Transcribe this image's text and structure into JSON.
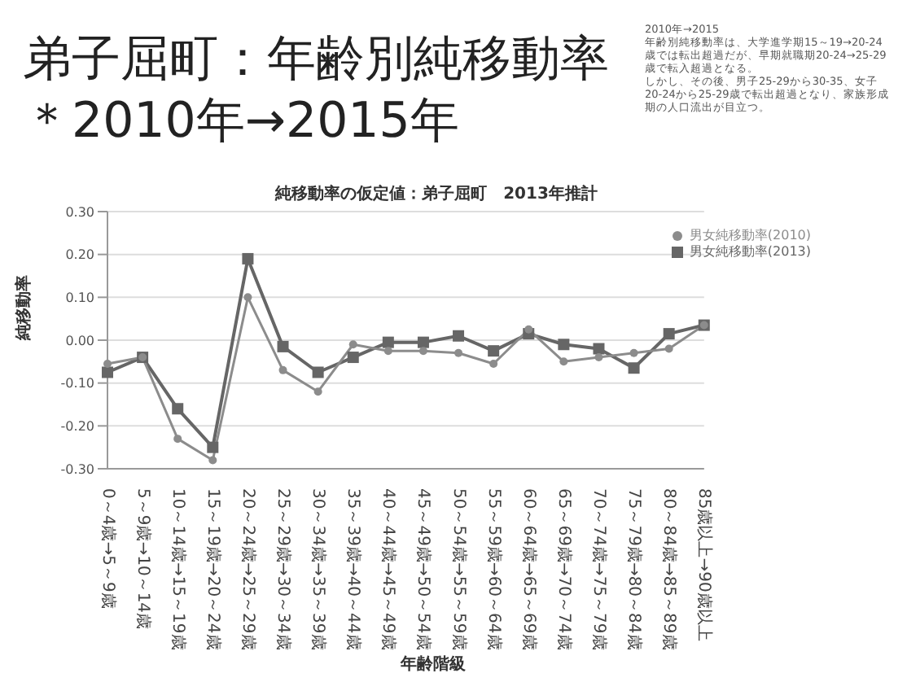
{
  "chart_data": {
    "type": "line",
    "title": "純移動率の仮定値：弟子屈町　2013年推計",
    "categories": [
      "0～4歳→5～9歳",
      "5～9歳→10～14歳",
      "10～14歳→15～19歳",
      "15～19歳→20～24歳",
      "20～24歳→25～29歳",
      "25～29歳→30～34歳",
      "30～34歳→35～39歳",
      "35～39歳→40～44歳",
      "40～44歳→45～49歳",
      "45～49歳→50～54歳",
      "50～54歳→55～59歳",
      "55～59歳→60～64歳",
      "60～64歳→65～69歳",
      "65～69歳→70～74歳",
      "70～74歳→75～79歳",
      "75～79歳→80～84歳",
      "80～84歳→85～89歳",
      "85歳以上→90歳以上"
    ],
    "series": [
      {
        "name": "男女純移動率(2010)",
        "color": "#8c8c8c",
        "marker": "circle",
        "values": [
          -0.055,
          -0.04,
          -0.23,
          -0.28,
          0.1,
          -0.07,
          -0.12,
          -0.01,
          -0.025,
          -0.025,
          -0.03,
          -0.055,
          0.025,
          -0.05,
          -0.04,
          -0.03,
          -0.02,
          0.035
        ]
      },
      {
        "name": "男女純移動率(2013)",
        "color": "#666666",
        "marker": "square",
        "values": [
          -0.075,
          -0.04,
          -0.16,
          -0.25,
          0.19,
          -0.015,
          -0.075,
          -0.04,
          -0.005,
          -0.005,
          0.01,
          -0.025,
          0.015,
          -0.01,
          -0.02,
          -0.065,
          0.015,
          0.035
        ]
      }
    ],
    "ylim": [
      -0.3,
      0.3
    ],
    "yticks": [
      {
        "value": 0.3,
        "label": "0.30"
      },
      {
        "value": 0.2,
        "label": "0.20"
      },
      {
        "value": 0.1,
        "label": "0.10"
      },
      {
        "value": 0,
        "label": "0.00"
      },
      {
        "value": -0.1,
        "label": "-0.10"
      },
      {
        "value": -0.2,
        "label": "-0.20"
      },
      {
        "value": -0.3,
        "label": "-0.30"
      }
    ],
    "ylabel": "純移動率",
    "xlabel": "年齢階級",
    "grid": "y",
    "legend": "top right",
    "annotations": [
      "弟子屈町：年齢別純移動率",
      "＊2010年→2015年",
      "2010年→2015",
      "年齢別純移動率は、大学進学期15～19→20-24歳では転出超過だが、早期就職期20-24→25-29歳で転入超過となる。",
      "しかし、その後、男子25-29から30-35、女子20-24から25-29歳で転出超過となり、家族形成期の人口流出が目立つ。"
    ]
  }
}
